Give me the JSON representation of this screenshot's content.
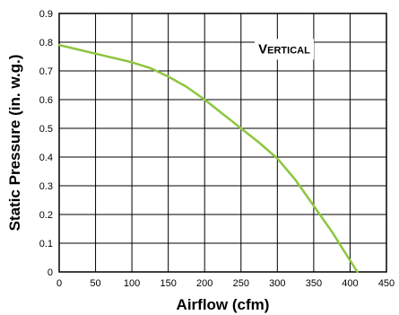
{
  "chart_data": {
    "type": "line",
    "xlabel": "Airflow (cfm)",
    "ylabel": "Static Pressure (in. w.g.)",
    "xlim": [
      0,
      450
    ],
    "ylim": [
      0,
      0.9
    ],
    "xticks": [
      0,
      50,
      100,
      150,
      200,
      250,
      300,
      350,
      400,
      450
    ],
    "yticks": [
      0,
      0.1,
      0.2,
      0.3,
      0.4,
      0.5,
      0.6,
      0.7,
      0.8,
      0.9
    ],
    "grid": true,
    "annotation": "Vertical",
    "series": [
      {
        "color": "#8dc63f",
        "x": [
          0,
          25,
          50,
          75,
          100,
          125,
          150,
          175,
          200,
          225,
          250,
          275,
          300,
          325,
          350,
          375,
          400,
          410
        ],
        "y": [
          0.79,
          0.775,
          0.76,
          0.745,
          0.73,
          0.71,
          0.68,
          0.645,
          0.6,
          0.55,
          0.5,
          0.45,
          0.395,
          0.32,
          0.23,
          0.14,
          0.04,
          0.0
        ]
      }
    ]
  }
}
